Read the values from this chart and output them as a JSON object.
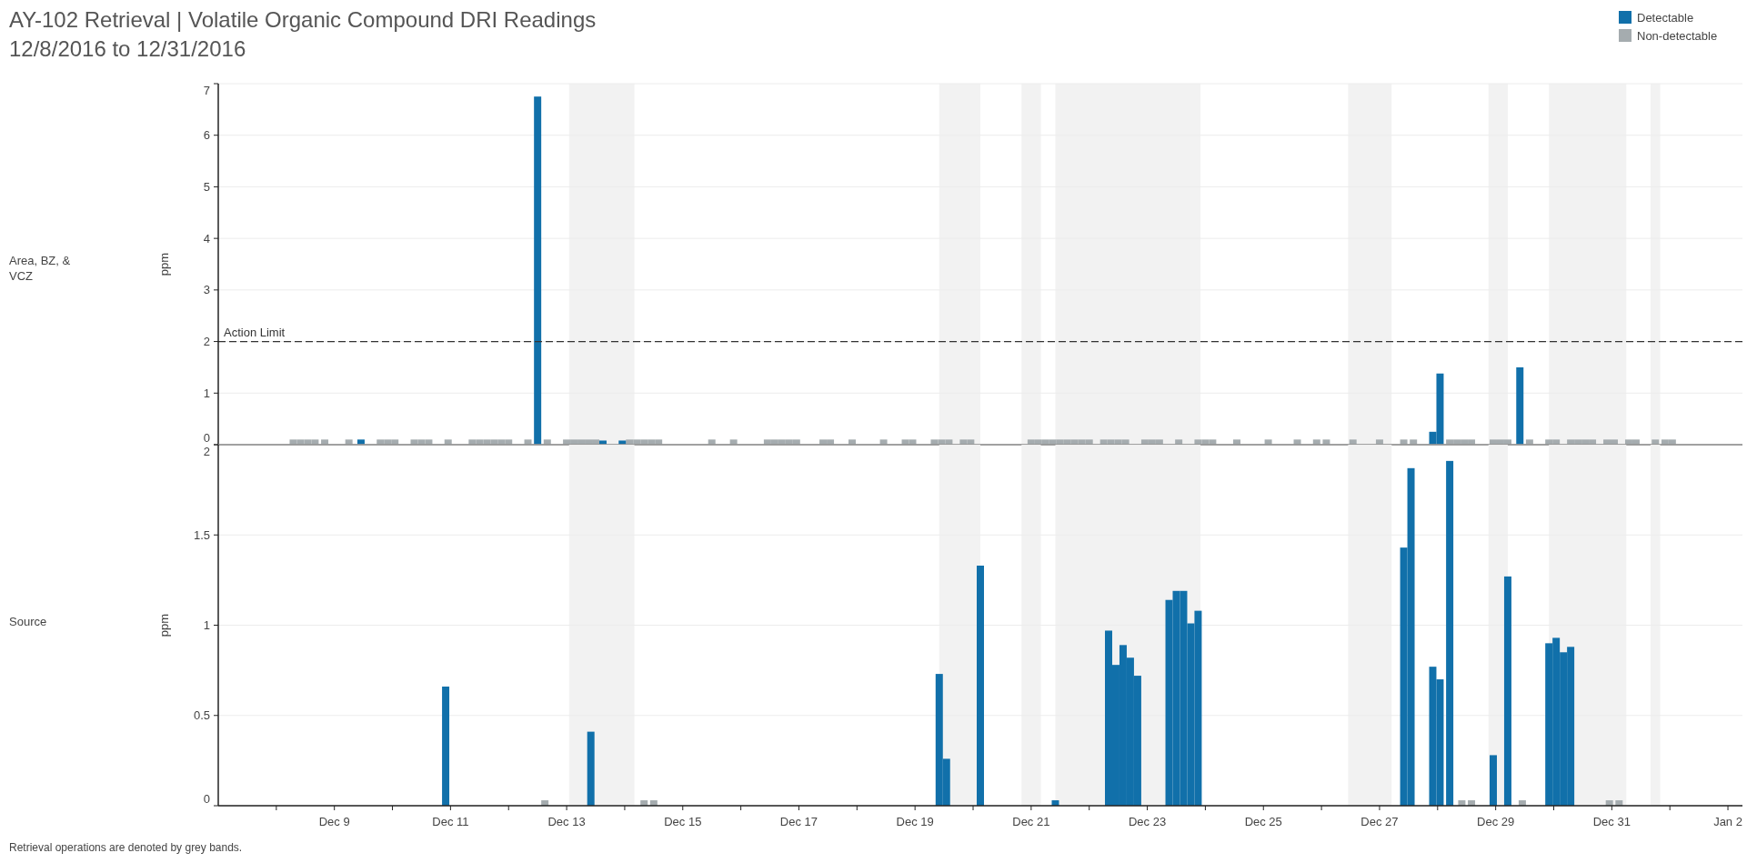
{
  "chart_data": [
    {
      "type": "bar",
      "title": "AY-102 Retrieval | Volatile Organic Compound DRI Readings",
      "subtitle": "12/8/2016 to 12/31/2016",
      "ylabel": "ppm",
      "annotations": [
        "Area, BZ, & VCZ"
      ],
      "xlim": [
        "2016-12-07",
        "2017-01-02T06:00"
      ],
      "ylim": [
        0,
        7
      ],
      "yticks": [
        0,
        1,
        2,
        3,
        4,
        5,
        6,
        7
      ],
      "grid": "y",
      "legend": "top right",
      "tick_labels": "y",
      "ref_lines": [
        {
          "axis": "y",
          "value": 2,
          "label": "Action Limit",
          "color": "#333333",
          "line_style": "dashed"
        }
      ],
      "bands": [
        {
          "axis": "x",
          "from": "2016-12-13T01:00",
          "to": "2016-12-14T04:00",
          "color": "#f2f2f2"
        },
        {
          "axis": "x",
          "from": "2016-12-19T10:00",
          "to": "2016-12-20T03:00",
          "color": "#f2f2f2"
        },
        {
          "axis": "x",
          "from": "2016-12-20T20:00",
          "to": "2016-12-21T04:00",
          "color": "#f2f2f2"
        },
        {
          "axis": "x",
          "from": "2016-12-21T10:00",
          "to": "2016-12-23T22:00",
          "color": "#f2f2f2"
        },
        {
          "axis": "x",
          "from": "2016-12-26T11:00",
          "to": "2016-12-27T05:00",
          "color": "#f2f2f2"
        },
        {
          "axis": "x",
          "from": "2016-12-28T21:00",
          "to": "2016-12-29T05:00",
          "color": "#f2f2f2"
        },
        {
          "axis": "x",
          "from": "2016-12-29T22:00",
          "to": "2016-12-31T06:00",
          "color": "#f2f2f2"
        },
        {
          "axis": "x",
          "from": "2016-12-31T16:00",
          "to": "2016-12-31T20:00",
          "color": "#f2f2f2"
        }
      ],
      "series": [
        {
          "name": "Non-detectable",
          "color": "#a5acaf",
          "x": [
            "2016-12-08T07:00",
            "2016-12-08T10:00",
            "2016-12-08T13:00",
            "2016-12-08T16:00",
            "2016-12-08T20:00",
            "2016-12-09T06:00",
            "2016-12-09T19:00",
            "2016-12-09T22:00",
            "2016-12-10T01:00",
            "2016-12-10T09:00",
            "2016-12-10T12:00",
            "2016-12-10T15:00",
            "2016-12-10T23:00",
            "2016-12-11T09:00",
            "2016-12-11T12:00",
            "2016-12-11T15:00",
            "2016-12-11T18:00",
            "2016-12-11T21:00",
            "2016-12-12T00:00",
            "2016-12-12T08:00",
            "2016-12-12T16:00",
            "2016-12-13T00:00",
            "2016-12-13T03:00",
            "2016-12-13T06:00",
            "2016-12-13T09:00",
            "2016-12-13T12:00",
            "2016-12-14T02:00",
            "2016-12-14T05:00",
            "2016-12-14T08:00",
            "2016-12-14T11:00",
            "2016-12-14T14:00",
            "2016-12-15T12:00",
            "2016-12-15T21:00",
            "2016-12-16T11:00",
            "2016-12-16T14:00",
            "2016-12-16T17:00",
            "2016-12-16T20:00",
            "2016-12-16T23:00",
            "2016-12-17T10:00",
            "2016-12-17T13:00",
            "2016-12-17T22:00",
            "2016-12-18T11:00",
            "2016-12-18T20:00",
            "2016-12-18T23:00",
            "2016-12-19T08:00",
            "2016-12-19T11:00",
            "2016-12-19T14:00",
            "2016-12-19T20:00",
            "2016-12-19T23:00",
            "2016-12-21T00:00",
            "2016-12-21T03:00",
            "2016-12-21T06:00",
            "2016-12-21T09:00",
            "2016-12-21T12:00",
            "2016-12-21T15:00",
            "2016-12-21T18:00",
            "2016-12-21T21:00",
            "2016-12-22T00:00",
            "2016-12-22T06:00",
            "2016-12-22T09:00",
            "2016-12-22T12:00",
            "2016-12-22T15:00",
            "2016-12-22T23:00",
            "2016-12-23T02:00",
            "2016-12-23T05:00",
            "2016-12-23T13:00",
            "2016-12-23T21:00",
            "2016-12-24T00:00",
            "2016-12-24T03:00",
            "2016-12-24T13:00",
            "2016-12-25T02:00",
            "2016-12-25T14:00",
            "2016-12-25T22:00",
            "2016-12-26T02:00",
            "2016-12-26T13:00",
            "2016-12-27T00:00",
            "2016-12-27T10:00",
            "2016-12-27T14:00",
            "2016-12-28T05:00",
            "2016-12-28T08:00",
            "2016-12-28T11:00",
            "2016-12-28T14:00",
            "2016-12-28T23:00",
            "2016-12-29T02:00",
            "2016-12-29T05:00",
            "2016-12-29T14:00",
            "2016-12-29T22:00",
            "2016-12-30T01:00",
            "2016-12-30T07:00",
            "2016-12-30T10:00",
            "2016-12-30T13:00",
            "2016-12-30T16:00",
            "2016-12-30T22:00",
            "2016-12-31T01:00",
            "2016-12-31T07:00",
            "2016-12-31T10:00",
            "2016-12-31T18:00",
            "2016-12-31T22:00",
            "2017-01-01T01:00"
          ],
          "values": [
            0.1,
            0.1,
            0.1,
            0.1,
            0.1,
            0.1,
            0.1,
            0.1,
            0.1,
            0.1,
            0.1,
            0.1,
            0.1,
            0.1,
            0.1,
            0.1,
            0.1,
            0.1,
            0.1,
            0.1,
            0.1,
            0.1,
            0.1,
            0.1,
            0.1,
            0.1,
            0.1,
            0.1,
            0.1,
            0.1,
            0.1,
            0.1,
            0.1,
            0.1,
            0.1,
            0.1,
            0.1,
            0.1,
            0.1,
            0.1,
            0.1,
            0.1,
            0.1,
            0.1,
            0.1,
            0.1,
            0.1,
            0.1,
            0.1,
            0.1,
            0.1,
            0.1,
            0.1,
            0.1,
            0.1,
            0.1,
            0.1,
            0.1,
            0.1,
            0.1,
            0.1,
            0.1,
            0.1,
            0.1,
            0.1,
            0.1,
            0.1,
            0.1,
            0.1,
            0.1,
            0.1,
            0.1,
            0.1,
            0.1,
            0.1,
            0.1,
            0.1,
            0.1,
            0.1,
            0.1,
            0.1,
            0.1,
            0.1,
            0.1,
            0.1,
            0.1,
            0.1,
            0.1,
            0.1,
            0.1,
            0.1,
            0.1,
            0.1,
            0.1,
            0.1,
            0.1,
            0.1,
            0.1,
            0.1
          ]
        },
        {
          "name": "Detectable",
          "color": "#1170aa",
          "x": [
            "2016-12-09T11:00",
            "2016-12-12T12:00",
            "2016-12-13T15:00",
            "2016-12-13T23:00",
            "2016-12-27T22:00",
            "2016-12-28T01:00",
            "2016-12-29T10:00"
          ],
          "values": [
            0.1,
            6.75,
            0.08,
            0.08,
            0.25,
            1.38,
            1.5
          ]
        }
      ]
    },
    {
      "type": "bar",
      "xlabel": null,
      "ylabel": "ppm",
      "annotations": [
        "Source",
        "Retrieval operations are denoted by grey bands."
      ],
      "xlim": [
        "2016-12-07",
        "2017-01-02T06:00"
      ],
      "ylim": [
        0,
        2
      ],
      "yticks": [
        0,
        0.5,
        1,
        1.5,
        2
      ],
      "grid": "y",
      "xticks": [
        {
          "value": "2016-12-08",
          "label": null
        },
        {
          "value": "2016-12-09",
          "label": "Dec 9"
        },
        {
          "value": "2016-12-10",
          "label": null
        },
        {
          "value": "2016-12-11",
          "label": "Dec 11"
        },
        {
          "value": "2016-12-12",
          "label": null
        },
        {
          "value": "2016-12-13",
          "label": "Dec 13"
        },
        {
          "value": "2016-12-14",
          "label": null
        },
        {
          "value": "2016-12-15",
          "label": "Dec 15"
        },
        {
          "value": "2016-12-16",
          "label": null
        },
        {
          "value": "2016-12-17",
          "label": "Dec 17"
        },
        {
          "value": "2016-12-18",
          "label": null
        },
        {
          "value": "2016-12-19",
          "label": "Dec 19"
        },
        {
          "value": "2016-12-20",
          "label": null
        },
        {
          "value": "2016-12-21",
          "label": "Dec 21"
        },
        {
          "value": "2016-12-22",
          "label": null
        },
        {
          "value": "2016-12-23",
          "label": "Dec 23"
        },
        {
          "value": "2016-12-24",
          "label": null
        },
        {
          "value": "2016-12-25",
          "label": "Dec 25"
        },
        {
          "value": "2016-12-26",
          "label": null
        },
        {
          "value": "2016-12-27",
          "label": "Dec 27"
        },
        {
          "value": "2016-12-28",
          "label": null
        },
        {
          "value": "2016-12-29",
          "label": "Dec 29"
        },
        {
          "value": "2016-12-30",
          "label": null
        },
        {
          "value": "2016-12-31",
          "label": "Dec 31"
        },
        {
          "value": "2017-01-01",
          "label": null
        },
        {
          "value": "2017-01-02",
          "label": "Jan 2"
        }
      ],
      "bands": [
        {
          "axis": "x",
          "from": "2016-12-13T01:00",
          "to": "2016-12-14T04:00",
          "color": "#f2f2f2"
        },
        {
          "axis": "x",
          "from": "2016-12-19T10:00",
          "to": "2016-12-20T03:00",
          "color": "#f2f2f2"
        },
        {
          "axis": "x",
          "from": "2016-12-20T20:00",
          "to": "2016-12-21T04:00",
          "color": "#f2f2f2"
        },
        {
          "axis": "x",
          "from": "2016-12-21T10:00",
          "to": "2016-12-23T22:00",
          "color": "#f2f2f2"
        },
        {
          "axis": "x",
          "from": "2016-12-26T11:00",
          "to": "2016-12-27T05:00",
          "color": "#f2f2f2"
        },
        {
          "axis": "x",
          "from": "2016-12-28T21:00",
          "to": "2016-12-29T05:00",
          "color": "#f2f2f2"
        },
        {
          "axis": "x",
          "from": "2016-12-29T22:00",
          "to": "2016-12-31T06:00",
          "color": "#f2f2f2"
        },
        {
          "axis": "x",
          "from": "2016-12-31T16:00",
          "to": "2016-12-31T20:00",
          "color": "#f2f2f2"
        }
      ],
      "series": [
        {
          "color": "#a5acaf",
          "x": [
            "2016-12-12T15:00",
            "2016-12-14T08:00",
            "2016-12-14T12:00",
            "2016-12-28T10:00",
            "2016-12-28T14:00",
            "2016-12-29T11:00",
            "2016-12-30T23:00",
            "2016-12-31T03:00"
          ],
          "values": [
            0.03,
            0.03,
            0.03,
            0.03,
            0.03,
            0.03,
            0.03,
            0.03
          ]
        },
        {
          "color": "#1170aa",
          "x": [
            "2016-12-10T22:00",
            "2016-12-13T10:00",
            "2016-12-19T10:00",
            "2016-12-19T13:00",
            "2016-12-20T03:00",
            "2016-12-21T10:00",
            "2016-12-22T08:00",
            "2016-12-22T11:00",
            "2016-12-22T14:00",
            "2016-12-22T17:00",
            "2016-12-22T20:00",
            "2016-12-23T09:00",
            "2016-12-23T12:00",
            "2016-12-23T15:00",
            "2016-12-23T18:00",
            "2016-12-23T21:00",
            "2016-12-27T10:00",
            "2016-12-27T13:00",
            "2016-12-27T22:00",
            "2016-12-28T01:00",
            "2016-12-28T05:00",
            "2016-12-28T23:00",
            "2016-12-29T05:00",
            "2016-12-29T22:00",
            "2016-12-30T01:00",
            "2016-12-30T04:00",
            "2016-12-30T07:00"
          ],
          "values": [
            0.66,
            0.41,
            0.73,
            0.26,
            1.33,
            0.03,
            0.97,
            0.78,
            0.89,
            0.82,
            0.72,
            1.14,
            1.19,
            1.19,
            1.01,
            1.08,
            1.43,
            1.87,
            0.77,
            0.7,
            1.91,
            0.28,
            1.27,
            0.9,
            0.93,
            0.85,
            0.88
          ]
        }
      ]
    }
  ]
}
